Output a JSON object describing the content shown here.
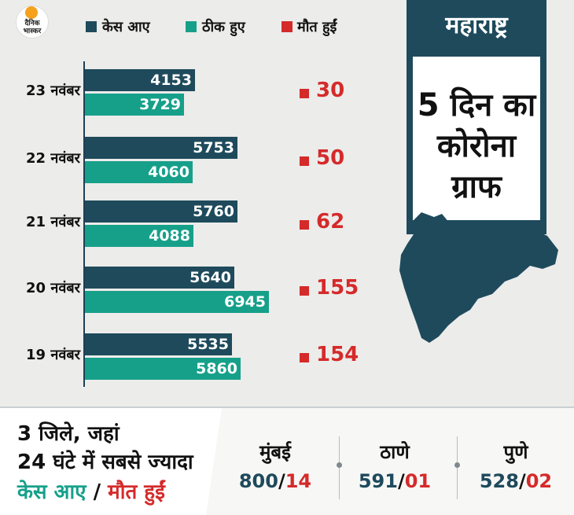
{
  "logo": {
    "line1": "दैनिक",
    "line2": "भास्कर"
  },
  "legend": [
    {
      "label": "केस आए",
      "color": "#1e4a5c"
    },
    {
      "label": "ठीक हुए",
      "color": "#16a08a"
    },
    {
      "label": "मौत हुईं",
      "color": "#d52a2a"
    }
  ],
  "panel": {
    "title": "महाराष्ट्र",
    "lines": [
      "5 दिन का",
      "कोरोना",
      "ग्राफ"
    ]
  },
  "chart_data": {
    "type": "bar",
    "orientation": "horizontal",
    "categories": [
      "23 नवंबर",
      "22 नवंबर",
      "21 नवंबर",
      "20 नवंबर",
      "19 नवंबर"
    ],
    "series": [
      {
        "name": "केस आए",
        "values": [
          4153,
          5753,
          5760,
          5640,
          5535
        ]
      },
      {
        "name": "ठीक हुए",
        "values": [
          3729,
          4060,
          4088,
          6945,
          5860
        ]
      },
      {
        "name": "मौत हुईं",
        "values": [
          30,
          50,
          62,
          155,
          154
        ]
      }
    ],
    "colors": [
      "#1e4a5c",
      "#16a08a",
      "#d52a2a"
    ],
    "xlim": [
      0,
      7000
    ],
    "legend": "top"
  },
  "bottom": {
    "line1": "3 जिले, जहां",
    "line2": "24 घंटे में सबसे ज्यादा",
    "line3_cases": "केस आए",
    "line3_sep": " / ",
    "line3_deaths": "मौत हुईं",
    "cities": [
      {
        "name": "मुंबई",
        "cases": "800",
        "deaths": "14"
      },
      {
        "name": "ठाणे",
        "cases": "591",
        "deaths": "01"
      },
      {
        "name": "पुणे",
        "cases": "528",
        "deaths": "02"
      }
    ],
    "slash": "/"
  }
}
